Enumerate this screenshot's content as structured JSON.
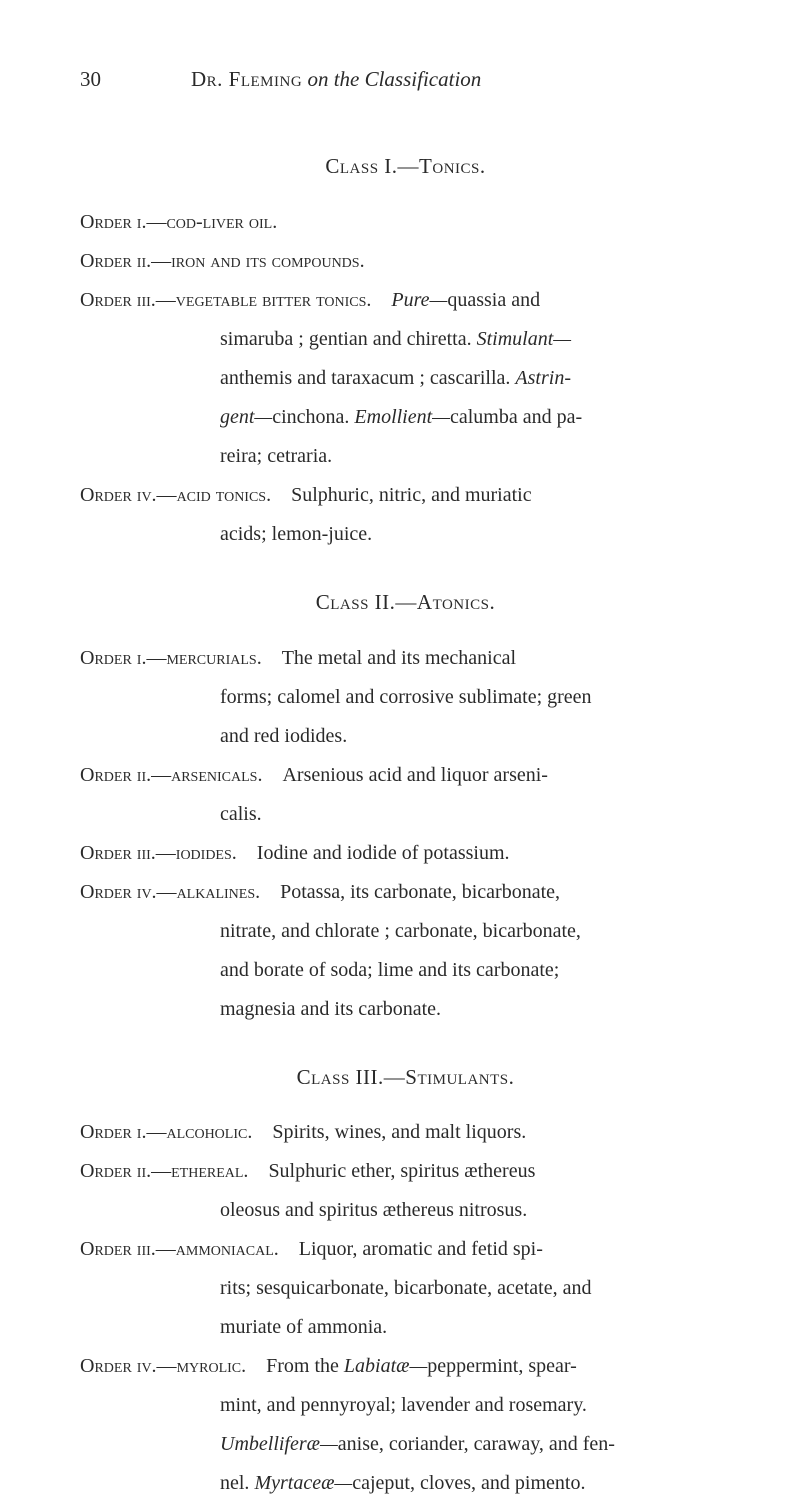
{
  "page": {
    "number": "30",
    "running_title_prefix": "Dr. Fleming",
    "running_title_italic": " on the Classification"
  },
  "class1": {
    "heading_prefix": "Class I.—",
    "heading_name": "Tonics.",
    "order1": {
      "label": "Order i.—",
      "name": "cod-liver oil."
    },
    "order2": {
      "label": "Order ii.—",
      "name": "iron and its compounds."
    },
    "order3": {
      "label": "Order iii.—",
      "name": "vegetable bitter tonics.",
      "line1_italic": "Pure—",
      "line1_rest": "quassia and",
      "line2a": "simaruba ; gentian and chiretta. ",
      "line2_italic": "Stimulant—",
      "line3a": "anthemis and taraxacum ; cascarilla. ",
      "line3_italic": "Astrin-",
      "line4_italic": "gent—",
      "line4a": "cinchona. ",
      "line4_italic2": "Emollient—",
      "line4b": "calumba and pa-",
      "line5": "reira; cetraria."
    },
    "order4": {
      "label": "Order iv.—",
      "name": "acid tonics.",
      "line1": "Sulphuric, nitric, and muriatic",
      "line2": "acids; lemon-juice."
    }
  },
  "class2": {
    "heading_prefix": "Class II.—",
    "heading_name": "Atonics.",
    "order1": {
      "label": "Order i.—",
      "name": "mercurials.",
      "line1": "The metal and its mechanical",
      "line2": "forms; calomel and corrosive sublimate; green",
      "line3": "and red iodides."
    },
    "order2": {
      "label": "Order ii.—",
      "name": "arsenicals.",
      "line1": "Arsenious acid and liquor arseni-",
      "line2": "calis."
    },
    "order3": {
      "label": "Order iii.—",
      "name": "iodides.",
      "line1": "Iodine and iodide of potassium."
    },
    "order4": {
      "label": "Order iv.—",
      "name": "alkalines.",
      "line1": "Potassa, its carbonate, bicarbonate,",
      "line2": "nitrate, and chlorate ; carbonate, bicarbonate,",
      "line3": "and borate of soda; lime and its carbonate;",
      "line4": "magnesia and its carbonate."
    }
  },
  "class3": {
    "heading_prefix": "Class III.—",
    "heading_name": "Stimulants.",
    "order1": {
      "label": "Order i.—",
      "name": "alcoholic.",
      "line1": "Spirits, wines, and malt liquors."
    },
    "order2": {
      "label": "Order ii.—",
      "name": "ethereal.",
      "line1": "Sulphuric ether, spiritus æthereus",
      "line2": "oleosus and spiritus æthereus nitrosus."
    },
    "order3": {
      "label": "Order iii.—",
      "name": "ammoniacal.",
      "line1": "Liquor, aromatic and fetid spi-",
      "line2": "rits; sesquicarbonate, bicarbonate, acetate, and",
      "line3": "muriate of ammonia."
    },
    "order4": {
      "label": "Order iv.—",
      "name": "myrolic.",
      "line1a": "From the ",
      "line1_italic": "Labiatæ—",
      "line1b": "peppermint, spear-",
      "line2": "mint, and pennyroyal; lavender and rosemary.",
      "line3_italic": "Umbelliferæ—",
      "line3a": "anise, coriander, caraway, and fen-",
      "line4a": "nel. ",
      "line4_italic": "Myrtaceæ—",
      "line4b": "cajeput, cloves, and pimento."
    }
  }
}
